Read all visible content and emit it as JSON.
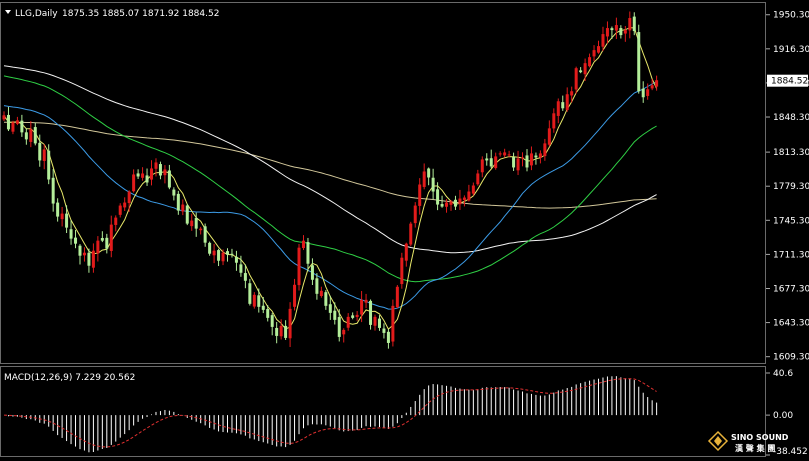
{
  "header": {
    "symbol": "LLG,Daily",
    "ohlc": "1875.35 1885.07 1871.92 1884.52"
  },
  "macd_header": {
    "label": "MACD(12,26,9) 7.229 20.562"
  },
  "price_axis": {
    "ticks": [
      "1950.30",
      "1916.30",
      "1882.30",
      "1848.30",
      "1813.30",
      "1779.30",
      "1745.30",
      "1711.30",
      "1677.30",
      "1643.30",
      "1609.30"
    ],
    "tick_values": [
      1950.3,
      1916.3,
      1882.3,
      1848.3,
      1813.3,
      1779.3,
      1745.3,
      1711.3,
      1677.3,
      1643.3,
      1609.3
    ],
    "current_price": "1884.52"
  },
  "macd_axis": {
    "ticks": [
      "40.6",
      "0.00",
      "-38.452"
    ],
    "tick_values": [
      40.6,
      0,
      -38.452
    ]
  },
  "logo": {
    "name": "SINO SOUND",
    "name_cn": "漢 聲 集 團"
  },
  "colors": {
    "background": "#000000",
    "bull_candle": "#e21b1b",
    "bear_candle": "#b4ee9a",
    "ma_fast": "#e8e86a",
    "ma_mid": "#3c9be6",
    "ma_green": "#2fcf45",
    "ma_white": "#f2f2f2",
    "ma_tan": "#d2c79a",
    "macd_hist": "#ffffff",
    "macd_signal": "#e03030"
  },
  "chart_data": {
    "type": "candlestick",
    "title": "LLG,Daily",
    "ylim": [
      1603,
      1962
    ],
    "candles": {
      "close": [
        1850,
        1836,
        1843,
        1845,
        1833,
        1826,
        1836,
        1822,
        1805,
        1816,
        1786,
        1762,
        1749,
        1752,
        1738,
        1727,
        1722,
        1710,
        1713,
        1700,
        1715,
        1725,
        1725,
        1717,
        1741,
        1748,
        1760,
        1763,
        1774,
        1791,
        1789,
        1792,
        1783,
        1797,
        1803,
        1790,
        1796,
        1778,
        1770,
        1755,
        1761,
        1742,
        1745,
        1737,
        1737,
        1723,
        1712,
        1715,
        1705,
        1713,
        1711,
        1711,
        1703,
        1693,
        1685,
        1662,
        1671,
        1659,
        1656,
        1648,
        1639,
        1630,
        1640,
        1628,
        1657,
        1681,
        1718,
        1725,
        1702,
        1686,
        1672,
        1675,
        1660,
        1653,
        1646,
        1629,
        1636,
        1649,
        1648,
        1651,
        1666,
        1666,
        1641,
        1649,
        1638,
        1633,
        1623,
        1660,
        1679,
        1708,
        1722,
        1742,
        1760,
        1781,
        1794,
        1788,
        1774,
        1761,
        1759,
        1763,
        1764,
        1759,
        1767,
        1768,
        1774,
        1780,
        1792,
        1806,
        1805,
        1799,
        1809,
        1812,
        1813,
        1811,
        1798,
        1807,
        1808,
        1798,
        1812,
        1808,
        1812,
        1822,
        1837,
        1852,
        1864,
        1857,
        1871,
        1874,
        1897,
        1893,
        1902,
        1908,
        1915,
        1919,
        1931,
        1937,
        1935,
        1940,
        1930,
        1935,
        1947,
        1934,
        1874,
        1868,
        1876,
        1880,
        1885
      ],
      "note": "approx. daily closes read from the chart (151 sessions)"
    },
    "overlays": [
      "ma_fast",
      "ma_mid",
      "ma_green",
      "ma_white",
      "ma_tan"
    ],
    "macd": {
      "label": "MACD(12,26,9) 7.229 20.562",
      "macd": 7.229,
      "signal": 20.562,
      "ylim": [
        -38.452,
        40.6
      ]
    }
  }
}
